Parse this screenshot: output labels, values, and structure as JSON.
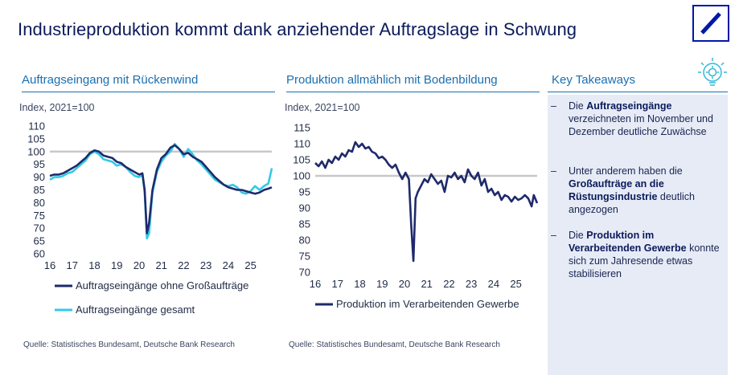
{
  "page_title": "Industrieproduktion kommt dank anziehender Auftragslage in Schwung",
  "logo_name": "deutsche-bank-logo",
  "charts": {
    "left": {
      "heading": "Auftragseingang mit Rückenwind",
      "source": "Quelle: Statistisches Bundesamt, Deutsche Bank Research"
    },
    "middle": {
      "heading": "Produktion allmählich mit Bodenbildung",
      "source": "Quelle: Statistisches Bundesamt, Deutsche Bank Research"
    }
  },
  "takeaways": {
    "heading": "Key Takeaways",
    "icon": "lightbulb-gear-icon",
    "items": [
      {
        "pre": "Die ",
        "bold": "Auftragseingänge",
        "post": " verzeichneten im November und Dezember deutliche Zuwächse"
      },
      {
        "pre": "Unter anderem haben die ",
        "bold": "Großaufträge an die Rüstungsindustrie",
        "post": " deutlich angezogen"
      },
      {
        "pre": "Die ",
        "bold": "Produktion im Verarbeitenden Gewerbe",
        "post": " konnte sich zum Jahresende etwas stabilisieren"
      }
    ]
  },
  "colors": {
    "navy": "#1f2a6b",
    "cyan": "#33c9e6",
    "heading_blue": "#1a6fb0",
    "reference_line": "#c8c8c8"
  },
  "chart_data": [
    {
      "type": "line",
      "title": "Auftragseingang mit Rückenwind",
      "ylabel": "Index, 2021=100",
      "ylim": [
        60,
        110
      ],
      "yticks": [
        "60",
        "65",
        "70",
        "75",
        "80",
        "85",
        "90",
        "95",
        "100",
        "105",
        "110"
      ],
      "xlim": [
        2016,
        2025.95
      ],
      "xticks": [
        "16",
        "17",
        "18",
        "19",
        "20",
        "21",
        "22",
        "23",
        "24",
        "25"
      ],
      "reference_value": 100,
      "series": [
        {
          "name": "Auftragseingänge ohne Großaufträge",
          "color": "#1f2a6b",
          "x": [
            2016.0,
            2016.2,
            2016.4,
            2016.6,
            2016.8,
            2017.0,
            2017.2,
            2017.4,
            2017.6,
            2017.8,
            2018.0,
            2018.2,
            2018.4,
            2018.6,
            2018.8,
            2019.0,
            2019.2,
            2019.4,
            2019.6,
            2019.8,
            2020.0,
            2020.15,
            2020.25,
            2020.35,
            2020.45,
            2020.6,
            2020.8,
            2021.0,
            2021.2,
            2021.4,
            2021.6,
            2021.8,
            2022.0,
            2022.2,
            2022.4,
            2022.6,
            2022.8,
            2023.0,
            2023.2,
            2023.4,
            2023.6,
            2023.8,
            2024.0,
            2024.2,
            2024.4,
            2024.6,
            2024.8,
            2025.0,
            2025.2,
            2025.4,
            2025.6,
            2025.8,
            2025.95
          ],
          "y": [
            90.5,
            91,
            91,
            91.5,
            92.5,
            93.5,
            94.5,
            96,
            97.5,
            99.5,
            100.5,
            100,
            98.5,
            98,
            97.5,
            96,
            95.5,
            94,
            93,
            92,
            91,
            91.5,
            85,
            68,
            72,
            85,
            93,
            97.5,
            99,
            101.5,
            102.5,
            101,
            99,
            99.5,
            98,
            97,
            96,
            94,
            92,
            90,
            88.5,
            87,
            86,
            85.5,
            85,
            85,
            84.5,
            84,
            83.5,
            84,
            85,
            85.5,
            86
          ]
        },
        {
          "name": "Auftragseingänge gesamt",
          "color": "#33c9e6",
          "x": [
            2016.0,
            2016.2,
            2016.4,
            2016.6,
            2016.8,
            2017.0,
            2017.2,
            2017.4,
            2017.6,
            2017.8,
            2018.0,
            2018.2,
            2018.4,
            2018.6,
            2018.8,
            2019.0,
            2019.2,
            2019.4,
            2019.6,
            2019.8,
            2020.0,
            2020.15,
            2020.25,
            2020.35,
            2020.45,
            2020.6,
            2020.8,
            2021.0,
            2021.2,
            2021.4,
            2021.6,
            2021.8,
            2022.0,
            2022.2,
            2022.4,
            2022.6,
            2022.8,
            2023.0,
            2023.2,
            2023.4,
            2023.6,
            2023.8,
            2024.0,
            2024.2,
            2024.4,
            2024.6,
            2024.8,
            2025.0,
            2025.2,
            2025.4,
            2025.6,
            2025.8,
            2025.95
          ],
          "y": [
            89,
            90,
            90,
            90.5,
            91.5,
            92,
            93.5,
            95,
            96.5,
            99,
            100,
            99,
            97,
            96.5,
            96,
            94.5,
            95,
            94,
            92,
            90.5,
            90,
            91,
            84,
            66,
            68,
            84,
            92,
            96,
            98.5,
            100,
            103,
            101,
            98,
            101,
            99,
            96.5,
            95,
            93,
            91,
            89,
            88,
            87,
            86.5,
            87,
            86,
            84,
            83.5,
            84.5,
            86.5,
            85,
            86.5,
            87.5,
            93.5
          ]
        }
      ],
      "legend": [
        "Auftragseingänge ohne Großaufträge",
        "Auftragseingänge gesamt"
      ],
      "legend_position": "bottom"
    },
    {
      "type": "line",
      "title": "Produktion allmählich mit Bodenbildung",
      "ylabel": "Index, 2021=100",
      "ylim": [
        70,
        115
      ],
      "yticks": [
        "70",
        "75",
        "80",
        "85",
        "90",
        "95",
        "100",
        "105",
        "110",
        "115"
      ],
      "xlim": [
        2016,
        2025.95
      ],
      "xticks": [
        "16",
        "17",
        "18",
        "19",
        "20",
        "21",
        "22",
        "23",
        "24",
        "25"
      ],
      "reference_value": 100,
      "series": [
        {
          "name": "Produktion im Verarbeitenden Gewerbe",
          "color": "#1f2a6b",
          "x": [
            2016.0,
            2016.15,
            2016.3,
            2016.45,
            2016.6,
            2016.75,
            2016.9,
            2017.05,
            2017.2,
            2017.35,
            2017.5,
            2017.65,
            2017.8,
            2017.95,
            2018.1,
            2018.25,
            2018.4,
            2018.55,
            2018.7,
            2018.85,
            2019.0,
            2019.15,
            2019.3,
            2019.45,
            2019.6,
            2019.75,
            2019.9,
            2020.05,
            2020.2,
            2020.3,
            2020.4,
            2020.5,
            2020.6,
            2020.75,
            2020.9,
            2021.05,
            2021.2,
            2021.35,
            2021.5,
            2021.65,
            2021.8,
            2021.95,
            2022.1,
            2022.25,
            2022.4,
            2022.55,
            2022.7,
            2022.85,
            2023.0,
            2023.15,
            2023.3,
            2023.45,
            2023.6,
            2023.75,
            2023.9,
            2024.05,
            2024.2,
            2024.35,
            2024.5,
            2024.65,
            2024.8,
            2024.95,
            2025.1,
            2025.25,
            2025.4,
            2025.55,
            2025.7,
            2025.8,
            2025.95
          ],
          "y": [
            104,
            103,
            104.5,
            102.5,
            105,
            104,
            106,
            105,
            107,
            106,
            108,
            107.5,
            110.5,
            109,
            110,
            108.5,
            109,
            107.5,
            107,
            105.5,
            106,
            105,
            103.5,
            102.5,
            103.5,
            101,
            99,
            101,
            99,
            85,
            73.5,
            93,
            95,
            97,
            99,
            98,
            100.5,
            99,
            97.5,
            98.5,
            95,
            100,
            99.5,
            101,
            99,
            100,
            98,
            102,
            100,
            99,
            101,
            97,
            99,
            95,
            96,
            94,
            95,
            92.5,
            94,
            93.5,
            92,
            93.5,
            92.5,
            93,
            94,
            93,
            90.5,
            94,
            91.5
          ]
        }
      ],
      "legend": [
        "Produktion im Verarbeitenden Gewerbe"
      ],
      "legend_position": "bottom"
    }
  ]
}
